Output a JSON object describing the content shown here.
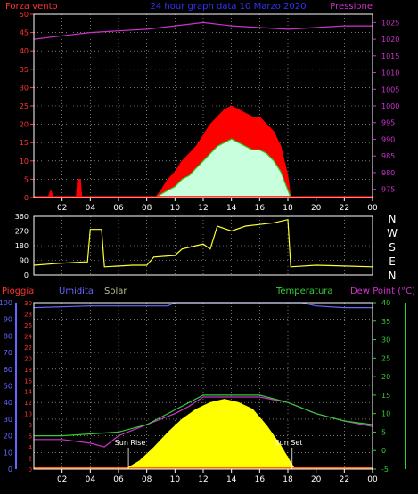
{
  "header": {
    "left_title": "Forza vento",
    "center_title": "24 hour graph data 10 Marzo 2020",
    "right_title": "Pressione"
  },
  "legend": {
    "rain": "Pioggia",
    "humidity": "Umidita",
    "solar": "Solar",
    "temperature": "Temperatura",
    "dewpoint": "Dew Point (°C)"
  },
  "annotations": {
    "sun_rise": "Sun Rise",
    "sun_set": "Sun Set"
  },
  "colors": {
    "wind_gust": "#ff0000",
    "wind_avg": "#22cc22",
    "wind_light": "#c8ffdc",
    "pressure": "#cc33cc",
    "wind_dir": "#ffff33",
    "humidity": "#6666ff",
    "solar": "#ffff00",
    "temperature": "#33cc33",
    "dewpoint": "#cc33cc",
    "rain": "#ff3333",
    "grid": "#bbbbbb",
    "frame": "#ffffff"
  },
  "chart_data": [
    {
      "type": "area",
      "name_hint": "wind-and-pressure",
      "x_ticks": [
        "02",
        "04",
        "06",
        "08",
        "10",
        "12",
        "14",
        "16",
        "18",
        "20",
        "22",
        "00"
      ],
      "y_left_ticks": [
        "0",
        "5",
        "10",
        "15",
        "20",
        "25",
        "30",
        "35",
        "40",
        "45",
        "50"
      ],
      "y_right_ticks": [
        "975",
        "980",
        "985",
        "990",
        "995",
        "1000",
        "1005",
        "1010",
        "1015",
        "1020",
        "1025"
      ],
      "ylim_left": [
        0,
        50
      ],
      "ylim_right": [
        972.5,
        1027.5
      ],
      "xlim": [
        0,
        24
      ],
      "wind_gust": [
        [
          0,
          0
        ],
        [
          1,
          0
        ],
        [
          1.2,
          2
        ],
        [
          1.4,
          0
        ],
        [
          3.0,
          0
        ],
        [
          3.1,
          5
        ],
        [
          3.3,
          5
        ],
        [
          3.4,
          0
        ],
        [
          8.6,
          0
        ],
        [
          9.0,
          2
        ],
        [
          9.5,
          5
        ],
        [
          10,
          7
        ],
        [
          10.5,
          10
        ],
        [
          11,
          12
        ],
        [
          11.5,
          14
        ],
        [
          12,
          17
        ],
        [
          12.5,
          20
        ],
        [
          13,
          22
        ],
        [
          13.5,
          24
        ],
        [
          14,
          25
        ],
        [
          14.5,
          24
        ],
        [
          15,
          23
        ],
        [
          15.5,
          22
        ],
        [
          16,
          22
        ],
        [
          16.5,
          20
        ],
        [
          17,
          18
        ],
        [
          17.5,
          14
        ],
        [
          18,
          6
        ],
        [
          18.2,
          0
        ],
        [
          24,
          0
        ]
      ],
      "wind_avg": [
        [
          8.6,
          0
        ],
        [
          9.5,
          2
        ],
        [
          10,
          3
        ],
        [
          10.5,
          5
        ],
        [
          11,
          6
        ],
        [
          11.5,
          8
        ],
        [
          12,
          10
        ],
        [
          12.5,
          12
        ],
        [
          13,
          14
        ],
        [
          13.5,
          15
        ],
        [
          14,
          16
        ],
        [
          14.5,
          15
        ],
        [
          15,
          14
        ],
        [
          15.5,
          13
        ],
        [
          16,
          13
        ],
        [
          16.5,
          12
        ],
        [
          17,
          10
        ],
        [
          17.5,
          7
        ],
        [
          18,
          2
        ],
        [
          18.2,
          0
        ]
      ],
      "pressure": [
        [
          0,
          1020
        ],
        [
          2,
          1021
        ],
        [
          4,
          1022
        ],
        [
          6,
          1022.5
        ],
        [
          8,
          1023
        ],
        [
          10,
          1024
        ],
        [
          12,
          1025
        ],
        [
          14,
          1024
        ],
        [
          16,
          1023.5
        ],
        [
          18,
          1023
        ],
        [
          20,
          1023.5
        ],
        [
          22,
          1024
        ],
        [
          24,
          1024
        ]
      ]
    },
    {
      "type": "line",
      "name_hint": "wind-direction",
      "y_ticks": [
        "0",
        "90",
        "180",
        "270",
        "360"
      ],
      "y_right_labels": [
        "N",
        "W",
        "S",
        "E",
        "N"
      ],
      "ylim": [
        0,
        360
      ],
      "xlim": [
        0,
        24
      ],
      "wind_dir": [
        [
          0,
          60
        ],
        [
          1.5,
          70
        ],
        [
          3.5,
          80
        ],
        [
          3.8,
          80
        ],
        [
          4.0,
          280
        ],
        [
          4.8,
          280
        ],
        [
          5.0,
          50
        ],
        [
          7,
          60
        ],
        [
          8,
          60
        ],
        [
          8.5,
          110
        ],
        [
          10,
          120
        ],
        [
          10.5,
          160
        ],
        [
          11.5,
          180
        ],
        [
          12,
          190
        ],
        [
          12.5,
          160
        ],
        [
          13.0,
          300
        ],
        [
          14,
          270
        ],
        [
          15,
          300
        ],
        [
          16,
          310
        ],
        [
          17,
          320
        ],
        [
          18,
          340
        ],
        [
          18.2,
          50
        ],
        [
          20,
          60
        ],
        [
          22,
          55
        ],
        [
          24,
          50
        ]
      ]
    },
    {
      "type": "area",
      "name_hint": "humidity-temp-solar",
      "x_ticks": [
        "02",
        "04",
        "06",
        "08",
        "10",
        "12",
        "14",
        "16",
        "18",
        "20",
        "22",
        "00"
      ],
      "y_humidity_ticks": [
        "0",
        "10",
        "20",
        "30",
        "40",
        "50",
        "60",
        "70",
        "80",
        "90",
        "100"
      ],
      "y_rain_ticks": [
        "0",
        "2",
        "4",
        "6",
        "8",
        "10",
        "12",
        "14",
        "16",
        "18",
        "20",
        "22",
        "24",
        "26",
        "28",
        "30"
      ],
      "y_temp_ticks": [
        "-5",
        "0",
        "5",
        "10",
        "15",
        "20",
        "25",
        "30",
        "35",
        "40"
      ],
      "ylim_humidity": [
        0,
        100
      ],
      "ylim_temp": [
        -5,
        40
      ],
      "xlim": [
        0,
        24
      ],
      "humidity": [
        [
          0,
          97
        ],
        [
          4,
          98
        ],
        [
          8,
          98
        ],
        [
          9.5,
          98
        ],
        [
          10,
          100
        ],
        [
          12,
          100
        ],
        [
          16,
          100
        ],
        [
          19,
          100
        ],
        [
          20,
          98
        ],
        [
          22,
          97
        ],
        [
          24,
          97
        ]
      ],
      "temperature": [
        [
          0,
          4
        ],
        [
          2,
          4
        ],
        [
          4,
          4.5
        ],
        [
          6,
          5
        ],
        [
          8,
          7
        ],
        [
          10,
          11
        ],
        [
          11,
          13
        ],
        [
          12,
          15
        ],
        [
          14,
          15
        ],
        [
          16,
          15
        ],
        [
          18,
          13
        ],
        [
          20,
          10
        ],
        [
          22,
          8
        ],
        [
          24,
          7
        ]
      ],
      "dewpoint": [
        [
          0,
          3
        ],
        [
          2,
          3
        ],
        [
          4,
          2
        ],
        [
          5,
          1
        ],
        [
          6,
          4
        ],
        [
          8,
          7
        ],
        [
          10,
          10
        ],
        [
          11,
          12
        ],
        [
          12,
          14.5
        ],
        [
          14,
          14.5
        ],
        [
          16,
          14.5
        ],
        [
          18,
          13
        ],
        [
          20,
          10
        ],
        [
          22,
          8
        ],
        [
          24,
          6.5
        ]
      ],
      "solar": [
        [
          6.5,
          0
        ],
        [
          7.5,
          5
        ],
        [
          8.5,
          13
        ],
        [
          9.5,
          22
        ],
        [
          10.5,
          30
        ],
        [
          11.5,
          36
        ],
        [
          12.5,
          40
        ],
        [
          13.5,
          42
        ],
        [
          14.5,
          40
        ],
        [
          15.5,
          36
        ],
        [
          16.5,
          26
        ],
        [
          17.5,
          14
        ],
        [
          18.2,
          4
        ],
        [
          18.5,
          0
        ]
      ],
      "rain": [
        [
          0,
          0
        ],
        [
          24,
          0
        ]
      ]
    }
  ]
}
